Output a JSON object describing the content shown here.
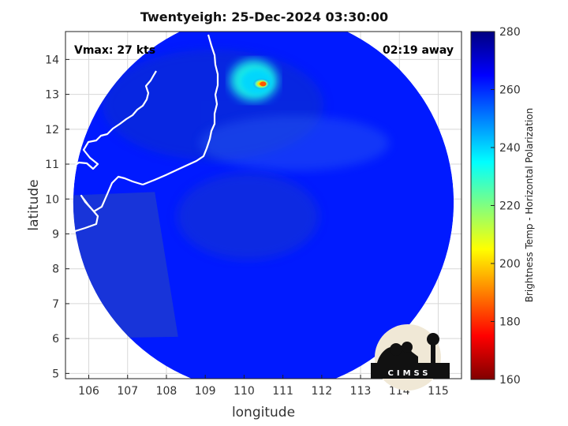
{
  "chart_data": {
    "type": "heatmap",
    "title": "Twentyeigh: 25-Dec-2024 03:30:00",
    "xlabel": "longitude",
    "ylabel": "latitude",
    "xlim": [
      105.4,
      115.6
    ],
    "ylim": [
      4.85,
      14.8
    ],
    "xticks": [
      106,
      107,
      108,
      109,
      110,
      111,
      112,
      113,
      114,
      115
    ],
    "yticks": [
      5,
      6,
      7,
      8,
      9,
      10,
      11,
      12,
      13,
      14
    ],
    "grid": true,
    "annotations": {
      "vmax": "Vmax: 27 kts",
      "away": "02:19 away"
    },
    "colorbar": {
      "label": "Brightness Temp - Horizontal Polarization",
      "min": 160,
      "max": 280,
      "ticks": [
        160,
        180,
        200,
        220,
        240,
        260,
        280
      ],
      "colormap": [
        "#800000",
        "#ff0000",
        "#ff8000",
        "#ffff00",
        "#80ff80",
        "#00ffff",
        "#0080ff",
        "#0000ff",
        "#000080"
      ]
    },
    "swath_center": [
      110.5,
      9.9
    ],
    "swath_radius_deg": 4.9,
    "background_value": 262,
    "features": [
      {
        "name": "convective cluster",
        "lon": 110.25,
        "lat": 13.4,
        "value": 232
      },
      {
        "name": "cold core",
        "lon": 110.45,
        "lat": 13.3,
        "value": 185
      }
    ],
    "logo": "CIMSS"
  }
}
